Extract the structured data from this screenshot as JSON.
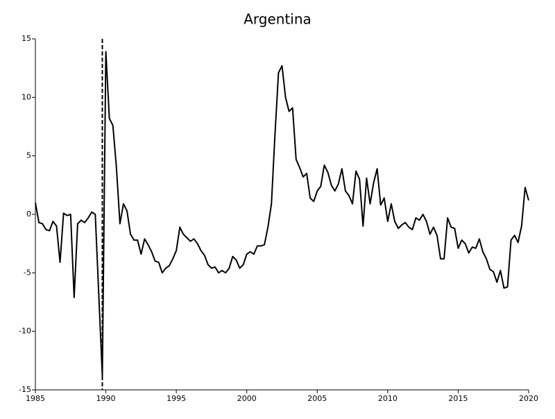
{
  "chart_data": {
    "type": "line",
    "title": "Argentina",
    "x": [
      1985,
      1985.25,
      1985.5,
      1985.75,
      1986,
      1986.25,
      1986.5,
      1986.75,
      1987,
      1987.25,
      1987.5,
      1987.75,
      1988,
      1988.25,
      1988.5,
      1988.75,
      1989,
      1989.25,
      1989.5,
      1989.75,
      1990,
      1990.25,
      1990.5,
      1990.75,
      1991,
      1991.25,
      1991.5,
      1991.75,
      1992,
      1992.25,
      1992.5,
      1992.75,
      1993,
      1993.25,
      1993.5,
      1993.75,
      1994,
      1994.25,
      1994.5,
      1994.75,
      1995,
      1995.25,
      1995.5,
      1995.75,
      1996,
      1996.25,
      1996.5,
      1996.75,
      1997,
      1997.25,
      1997.5,
      1997.75,
      1998,
      1998.25,
      1998.5,
      1998.75,
      1999,
      1999.25,
      1999.5,
      1999.75,
      2000,
      2000.25,
      2000.5,
      2000.75,
      2001,
      2001.25,
      2001.5,
      2001.75,
      2002,
      2002.25,
      2002.5,
      2002.75,
      2003,
      2003.25,
      2003.5,
      2003.75,
      2004,
      2004.25,
      2004.5,
      2004.75,
      2005,
      2005.25,
      2005.5,
      2005.75,
      2006,
      2006.25,
      2006.5,
      2006.75,
      2007,
      2007.25,
      2007.5,
      2007.75,
      2008,
      2008.25,
      2008.5,
      2008.75,
      2009,
      2009.25,
      2009.5,
      2009.75,
      2010,
      2010.25,
      2010.5,
      2010.75,
      2011,
      2011.25,
      2011.5,
      2011.75,
      2012,
      2012.25,
      2012.5,
      2012.75,
      2013,
      2013.25,
      2013.5,
      2013.75,
      2014,
      2014.25,
      2014.5,
      2014.75,
      2015,
      2015.25,
      2015.5,
      2015.75,
      2016,
      2016.25,
      2016.5,
      2016.75,
      2017,
      2017.25,
      2017.5,
      2017.75,
      2018,
      2018.25,
      2018.5,
      2018.75,
      2019,
      2019.25,
      2019.5,
      2019.75,
      2020
    ],
    "values": [
      1.0,
      -0.7,
      -0.8,
      -1.3,
      -1.4,
      -0.6,
      -1.0,
      -4.1,
      0.1,
      -0.1,
      0.0,
      -7.1,
      -0.8,
      -0.5,
      -0.7,
      -0.3,
      0.2,
      0.0,
      -6.9,
      -13.8,
      13.9,
      8.2,
      7.6,
      4.0,
      -0.8,
      0.9,
      0.3,
      -1.7,
      -2.2,
      -2.2,
      -3.4,
      -2.1,
      -2.6,
      -3.2,
      -4.0,
      -4.1,
      -5.0,
      -4.6,
      -4.4,
      -3.8,
      -3.1,
      -1.1,
      -1.7,
      -2.0,
      -2.3,
      -2.1,
      -2.5,
      -3.1,
      -3.5,
      -4.3,
      -4.6,
      -4.5,
      -5.0,
      -4.8,
      -5.0,
      -4.6,
      -3.6,
      -3.9,
      -4.6,
      -4.3,
      -3.4,
      -3.2,
      -3.4,
      -2.7,
      -2.7,
      -2.6,
      -1.1,
      0.9,
      6.8,
      12.1,
      12.7,
      10.0,
      8.8,
      9.1,
      4.7,
      4.0,
      3.2,
      3.5,
      1.4,
      1.1,
      2.0,
      2.4,
      4.2,
      3.6,
      2.5,
      2.0,
      2.6,
      3.9,
      2.0,
      1.6,
      0.9,
      3.7,
      3.0,
      -1.0,
      3.1,
      0.9,
      2.7,
      3.9,
      0.8,
      1.4,
      -0.6,
      0.9,
      -0.6,
      -1.2,
      -0.9,
      -0.7,
      -1.1,
      -1.3,
      -0.3,
      -0.5,
      0.0,
      -0.6,
      -1.7,
      -1.1,
      -1.8,
      -3.8,
      -3.8,
      -0.3,
      -1.1,
      -1.2,
      -2.9,
      -2.2,
      -2.5,
      -3.3,
      -2.8,
      -2.9,
      -2.1,
      -3.2,
      -3.8,
      -4.7,
      -4.9,
      -5.8,
      -4.8,
      -6.3,
      -6.2,
      -2.2,
      -1.8,
      -2.4,
      -1.0,
      2.3,
      1.2
    ],
    "color": "#000000",
    "vline": 1989.75,
    "xlim": [
      1985,
      2020
    ],
    "xticks": [
      1985,
      1990,
      1995,
      2000,
      2005,
      2010,
      2015,
      2020
    ],
    "ylim": [
      -15,
      15
    ],
    "yticks": [
      -15,
      -10,
      -5,
      0,
      5,
      10,
      15
    ],
    "grid": false
  }
}
